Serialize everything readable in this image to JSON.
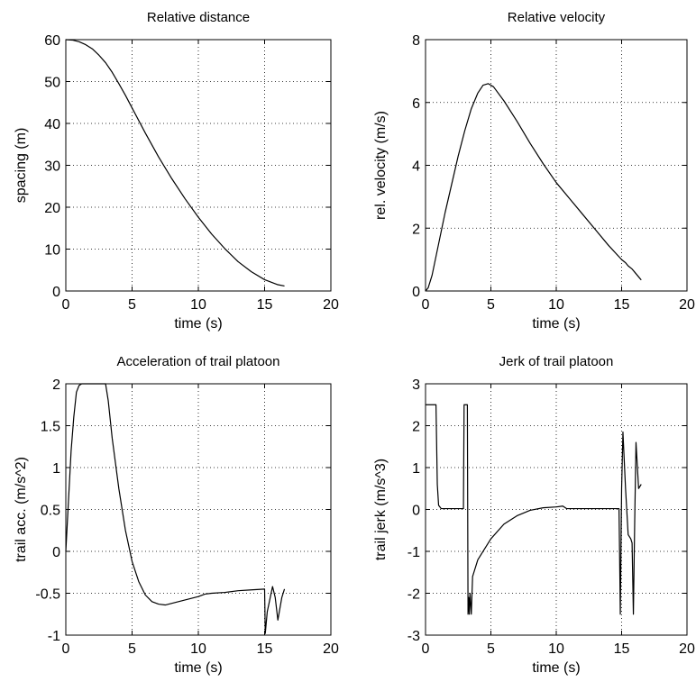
{
  "chart_data": [
    {
      "type": "line",
      "title": "Relative distance",
      "xlabel": "time (s)",
      "ylabel": "spacing (m)",
      "xlim": [
        0,
        20
      ],
      "ylim": [
        0,
        60
      ],
      "xticks": [
        0,
        5,
        10,
        15,
        20
      ],
      "yticks": [
        0,
        10,
        20,
        30,
        40,
        50,
        60
      ],
      "grid": true,
      "series": [
        {
          "x": [
            0,
            0.5,
            1,
            1.5,
            2,
            2.5,
            3,
            3.5,
            4,
            4.5,
            5,
            6,
            7,
            8,
            9,
            10,
            11,
            12,
            13,
            14,
            15,
            16,
            16.5
          ],
          "y": [
            60,
            59.9,
            59.5,
            58.8,
            57.8,
            56.3,
            54.5,
            52.2,
            49.5,
            46.7,
            43.7,
            37.7,
            32,
            26.8,
            22,
            17.6,
            13.6,
            10.1,
            7,
            4.6,
            2.7,
            1.5,
            1.2
          ]
        }
      ]
    },
    {
      "type": "line",
      "title": "Relative velocity",
      "xlabel": "time (s)",
      "ylabel": "rel. velocity (m/s)",
      "xlim": [
        0,
        20
      ],
      "ylim": [
        0,
        8
      ],
      "xticks": [
        0,
        5,
        10,
        15,
        20
      ],
      "yticks": [
        0,
        2,
        4,
        6,
        8
      ],
      "grid": true,
      "series": [
        {
          "x": [
            0,
            0.2,
            0.5,
            1,
            1.5,
            2,
            2.5,
            3,
            3.5,
            4,
            4.4,
            4.8,
            5.2,
            6,
            7,
            8,
            9,
            10,
            11,
            12,
            13,
            14,
            15,
            15.3,
            15.5,
            15.8,
            16,
            16.3,
            16.5
          ],
          "y": [
            0,
            0.1,
            0.5,
            1.5,
            2.5,
            3.4,
            4.3,
            5.1,
            5.8,
            6.3,
            6.55,
            6.6,
            6.5,
            6.05,
            5.4,
            4.7,
            4.05,
            3.45,
            2.95,
            2.45,
            1.95,
            1.45,
            1.0,
            0.9,
            0.8,
            0.7,
            0.6,
            0.45,
            0.35
          ]
        }
      ]
    },
    {
      "type": "line",
      "title": "Acceleration of trail platoon",
      "xlabel": "time (s)",
      "ylabel": "trail acc. (m/s^2)",
      "xlim": [
        0,
        20
      ],
      "ylim": [
        -1,
        2
      ],
      "xticks": [
        0,
        5,
        10,
        15,
        20
      ],
      "yticks": [
        -1,
        -0.5,
        0,
        0.5,
        1,
        1.5,
        2
      ],
      "grid": true,
      "series": [
        {
          "x": [
            0,
            0.2,
            0.4,
            0.6,
            0.8,
            1.0,
            1.2,
            3.0,
            3.2,
            3.5,
            4,
            4.5,
            5,
            5.5,
            6,
            6.5,
            7,
            7.5,
            8,
            8.5,
            9,
            10,
            10.5,
            11,
            12,
            13,
            14,
            15,
            15.05,
            15.2,
            15.6,
            15.8,
            16,
            16.3,
            16.5
          ],
          "y": [
            0,
            0.6,
            1.2,
            1.6,
            1.9,
            1.98,
            2.0,
            2.0,
            1.8,
            1.35,
            0.75,
            0.25,
            -0.12,
            -0.36,
            -0.52,
            -0.6,
            -0.63,
            -0.64,
            -0.62,
            -0.6,
            -0.58,
            -0.54,
            -0.51,
            -0.5,
            -0.49,
            -0.47,
            -0.46,
            -0.45,
            -0.98,
            -0.72,
            -0.42,
            -0.55,
            -0.82,
            -0.55,
            -0.45
          ]
        }
      ]
    },
    {
      "type": "line",
      "title": "Jerk of trail platoon",
      "xlabel": "time (s)",
      "ylabel": "trail jerk (m/s^3)",
      "xlim": [
        0,
        20
      ],
      "ylim": [
        -3,
        3
      ],
      "xticks": [
        0,
        5,
        10,
        15,
        20
      ],
      "yticks": [
        -3,
        -2,
        -1,
        0,
        1,
        2,
        3
      ],
      "grid": true,
      "series": [
        {
          "x": [
            0,
            0.8,
            0.9,
            1.0,
            1.2,
            2.9,
            2.95,
            3.2,
            3.25,
            3.3,
            3.35,
            3.4,
            3.5,
            3.6,
            4,
            5,
            6,
            7,
            8,
            9,
            10,
            10.5,
            10.8,
            11,
            14.8,
            14.85,
            14.9,
            15.0,
            15.1,
            15.3,
            15.5,
            15.7,
            15.8,
            15.9,
            16.0,
            16.1,
            16.3,
            16.5
          ],
          "y": [
            2.5,
            2.5,
            0.6,
            0.1,
            0.02,
            0.02,
            2.5,
            2.5,
            -2.5,
            -2.1,
            -2.5,
            -2.0,
            -2.5,
            -1.6,
            -1.2,
            -0.7,
            -0.35,
            -0.15,
            -0.02,
            0.04,
            0.06,
            0.08,
            0.02,
            0.02,
            0.02,
            -1.2,
            -2.5,
            0.5,
            1.85,
            0.5,
            -0.6,
            -0.7,
            -0.8,
            -2.5,
            -0.3,
            1.6,
            0.5,
            0.6
          ]
        }
      ]
    }
  ]
}
